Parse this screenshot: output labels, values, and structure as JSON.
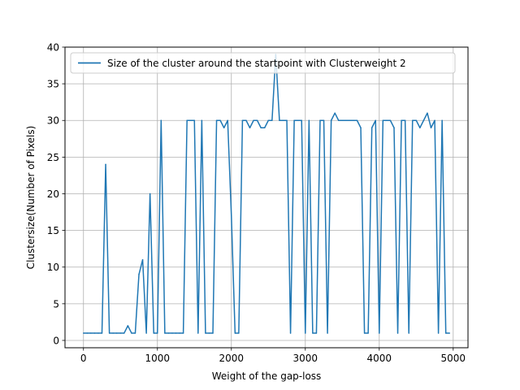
{
  "chart_data": {
    "type": "line",
    "title": "",
    "xlabel": "Weight of the gap-loss",
    "ylabel": "Clustersize(Number of Pixels)",
    "xlim": [
      -250,
      5200
    ],
    "ylim": [
      -1,
      40
    ],
    "xticks": [
      0,
      1000,
      2000,
      3000,
      4000,
      5000
    ],
    "yticks": [
      0,
      5,
      10,
      15,
      20,
      25,
      30,
      35,
      40
    ],
    "grid": true,
    "legend_position": "top-left",
    "colors": {
      "series": "#1f77b4"
    },
    "series": [
      {
        "name": "Size of the cluster around the startpoint with Clusterweight 2",
        "x": [
          0,
          50,
          100,
          150,
          200,
          250,
          300,
          350,
          400,
          450,
          500,
          550,
          600,
          650,
          700,
          750,
          800,
          850,
          900,
          950,
          1000,
          1050,
          1100,
          1150,
          1200,
          1250,
          1300,
          1350,
          1400,
          1450,
          1500,
          1550,
          1600,
          1650,
          1700,
          1750,
          1800,
          1850,
          1900,
          1950,
          2000,
          2050,
          2100,
          2150,
          2200,
          2250,
          2300,
          2350,
          2400,
          2450,
          2500,
          2550,
          2600,
          2650,
          2700,
          2750,
          2800,
          2850,
          2900,
          2950,
          3000,
          3050,
          3100,
          3150,
          3200,
          3250,
          3300,
          3350,
          3400,
          3450,
          3500,
          3550,
          3600,
          3650,
          3700,
          3750,
          3800,
          3850,
          3900,
          3950,
          4000,
          4050,
          4100,
          4150,
          4200,
          4250,
          4300,
          4350,
          4400,
          4450,
          4500,
          4550,
          4600,
          4650,
          4700,
          4750,
          4800,
          4850,
          4900,
          4950
        ],
        "values": [
          1,
          1,
          1,
          1,
          1,
          1,
          24,
          1,
          1,
          1,
          1,
          1,
          2,
          1,
          1,
          9,
          11,
          1,
          20,
          1,
          1,
          30,
          1,
          1,
          1,
          1,
          1,
          1,
          30,
          30,
          30,
          1,
          30,
          1,
          1,
          1,
          30,
          30,
          29,
          30,
          17,
          1,
          1,
          30,
          30,
          29,
          30,
          30,
          29,
          29,
          30,
          30,
          39,
          30,
          30,
          30,
          1,
          30,
          30,
          30,
          1,
          30,
          1,
          1,
          30,
          30,
          1,
          30,
          31,
          30,
          30,
          30,
          30,
          30,
          30,
          29,
          1,
          1,
          29,
          30,
          1,
          30,
          30,
          30,
          29,
          1,
          30,
          30,
          1,
          30,
          30,
          29,
          30,
          31,
          29,
          30,
          1,
          30,
          1,
          1
        ]
      }
    ]
  }
}
